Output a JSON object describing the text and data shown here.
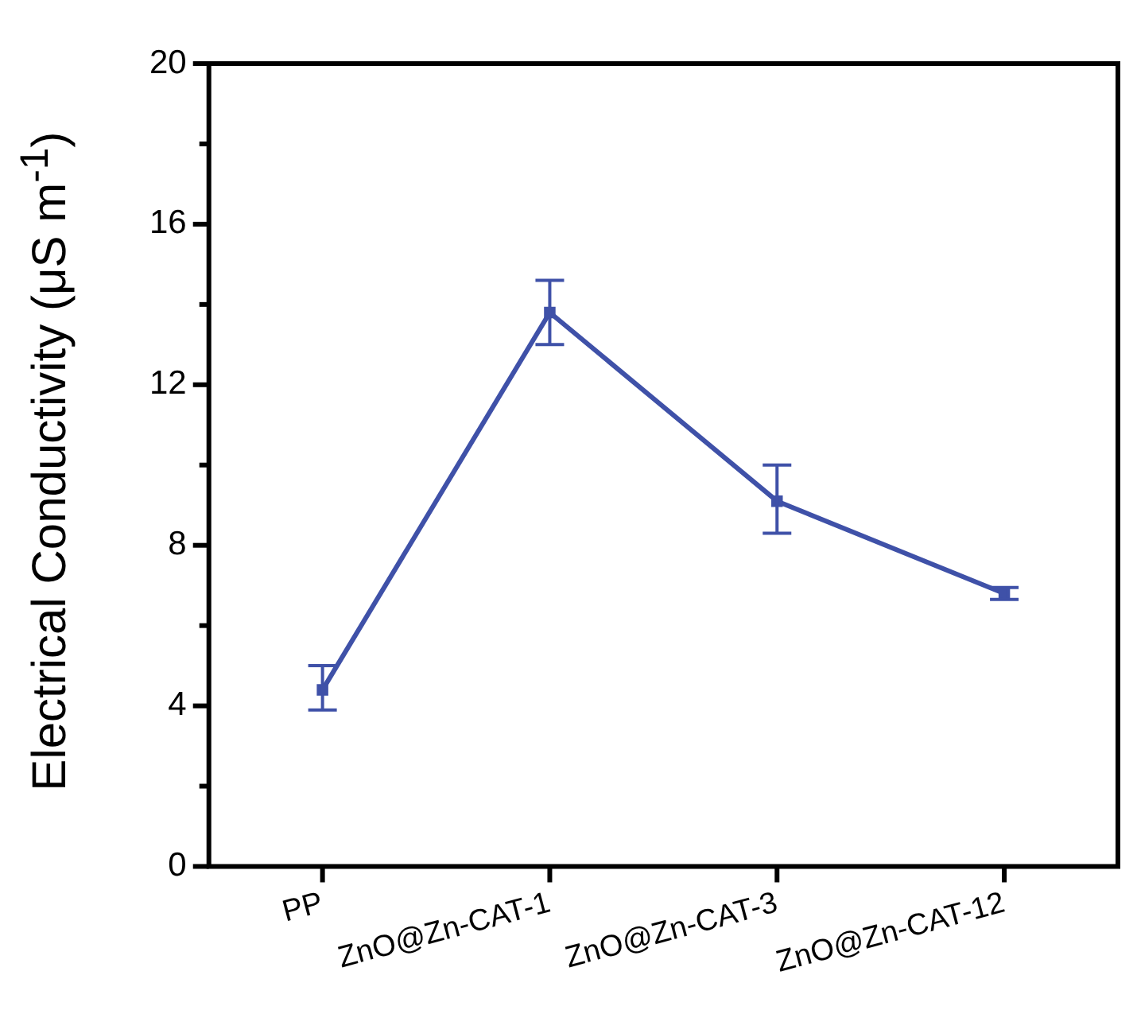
{
  "chart_data": {
    "type": "line",
    "ylabel": "Electrical Conductivity (μS m$^{-1}$)",
    "categories": [
      "PP",
      "ZnO@Zn-CAT-1",
      "ZnO@Zn-CAT-3",
      "ZnO@Zn-CAT-12"
    ],
    "series": [
      {
        "color": "#3f51a8",
        "values": [
          4.4,
          13.8,
          9.1,
          6.8
        ],
        "errors": [
          [
            3.9,
            5.0
          ],
          [
            13.0,
            14.6
          ],
          [
            8.3,
            10.0
          ],
          [
            6.65,
            6.95
          ]
        ]
      }
    ],
    "ylim": [
      0,
      20
    ],
    "yticks": [
      0,
      {
        "value": 2,
        "label": null
      },
      4,
      {
        "value": 6,
        "label": null
      },
      8,
      {
        "value": 10,
        "label": null
      },
      12,
      {
        "value": 14,
        "label": null
      },
      16,
      {
        "value": 18,
        "label": null
      },
      20
    ],
    "grid": false,
    "legend": false,
    "marker": "square",
    "line_style": "solid"
  }
}
